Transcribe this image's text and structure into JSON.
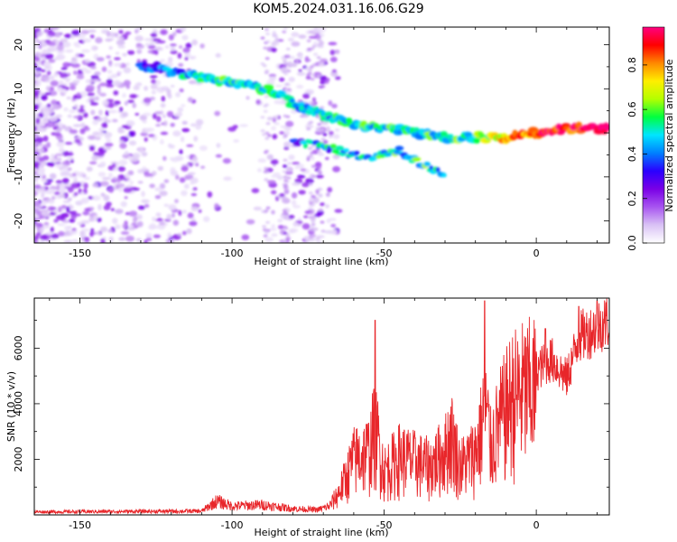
{
  "title": "KOM5.2024.031.16.06.G29",
  "chart_data": [
    {
      "type": "heatmap",
      "name": "spectrogram",
      "xlabel": "Height of straight line (km)",
      "ylabel": "Frequency (Hz)",
      "xlim": [
        -165,
        24
      ],
      "ylim": [
        -25,
        24
      ],
      "x_ticks": [
        -150,
        -100,
        -50,
        0
      ],
      "y_ticks": [
        -20,
        -10,
        0,
        10,
        20
      ],
      "colorbar": {
        "label": "Normalized spectral amplitude",
        "range": [
          0,
          0.97
        ],
        "ticks": [
          0.0,
          0.2,
          0.4,
          0.6,
          0.8
        ],
        "colormap": [
          "#ffffff",
          "#d9c2f5",
          "#a855f0",
          "#7a00e6",
          "#2a00ff",
          "#0080ff",
          "#00e5ff",
          "#00ff40",
          "#b4ff00",
          "#ffee00",
          "#ff8800",
          "#ff0000",
          "#ff0080"
        ]
      },
      "ridge": [
        {
          "x": -125,
          "y": 15,
          "v": 0.35
        },
        {
          "x": -115,
          "y": 13,
          "v": 0.45
        },
        {
          "x": -105,
          "y": 12,
          "v": 0.55
        },
        {
          "x": -95,
          "y": 11,
          "v": 0.5
        },
        {
          "x": -85,
          "y": 9,
          "v": 0.45
        },
        {
          "x": -78,
          "y": 6,
          "v": 0.45
        },
        {
          "x": -70,
          "y": 4,
          "v": 0.45
        },
        {
          "x": -60,
          "y": 2,
          "v": 0.5
        },
        {
          "x": -50,
          "y": 1,
          "v": 0.5
        },
        {
          "x": -40,
          "y": 0,
          "v": 0.5
        },
        {
          "x": -30,
          "y": -1,
          "v": 0.55
        },
        {
          "x": -20,
          "y": -1,
          "v": 0.55
        },
        {
          "x": -10,
          "y": -1,
          "v": 0.75
        },
        {
          "x": 0,
          "y": 0,
          "v": 0.85
        },
        {
          "x": 10,
          "y": 1,
          "v": 0.9
        },
        {
          "x": 20,
          "y": 1,
          "v": 0.95
        }
      ],
      "branches": [
        {
          "x": -78,
          "y": -2,
          "v": 0.4
        },
        {
          "x": -65,
          "y": -4,
          "v": 0.45
        },
        {
          "x": -55,
          "y": -6,
          "v": 0.5
        },
        {
          "x": -45,
          "y": -4,
          "v": 0.5
        },
        {
          "x": -38,
          "y": -7,
          "v": 0.5
        },
        {
          "x": -32,
          "y": -9,
          "v": 0.5
        }
      ]
    },
    {
      "type": "line",
      "name": "snr",
      "xlabel": "Height of straight line (km)",
      "ylabel": "SNR (10 * v/v)",
      "xlim": [
        -165,
        24
      ],
      "ylim": [
        0,
        7800
      ],
      "x_ticks": [
        -150,
        -100,
        -50,
        0
      ],
      "y_ticks": [
        2000,
        4000,
        6000
      ],
      "color": "#e8262a",
      "envelope": {
        "x": [
          -165,
          -110,
          -105,
          -100,
          -90,
          -80,
          -72,
          -68,
          -65,
          -62,
          -60,
          -58,
          -55,
          -53,
          -50,
          -45,
          -40,
          -35,
          -30,
          -28,
          -25,
          -22,
          -20,
          -18,
          -17,
          -15,
          -12,
          -10,
          -8,
          -5,
          0,
          5,
          10,
          14,
          18,
          22,
          24
        ],
        "y": [
          120,
          150,
          550,
          350,
          400,
          250,
          200,
          350,
          900,
          1700,
          2300,
          2400,
          2600,
          3600,
          1800,
          2400,
          2200,
          2000,
          2600,
          3300,
          2000,
          2300,
          2600,
          3500,
          4800,
          2800,
          3800,
          4300,
          4800,
          5000,
          5200,
          5600,
          4900,
          6400,
          6600,
          6900,
          7000
        ]
      },
      "peaks": [
        {
          "x": -53,
          "y": 7000
        },
        {
          "x": -17,
          "y": 7700
        },
        {
          "x": 3,
          "y": 6700
        },
        {
          "x": 14,
          "y": 7500
        },
        {
          "x": 20,
          "y": 7700
        }
      ]
    }
  ]
}
